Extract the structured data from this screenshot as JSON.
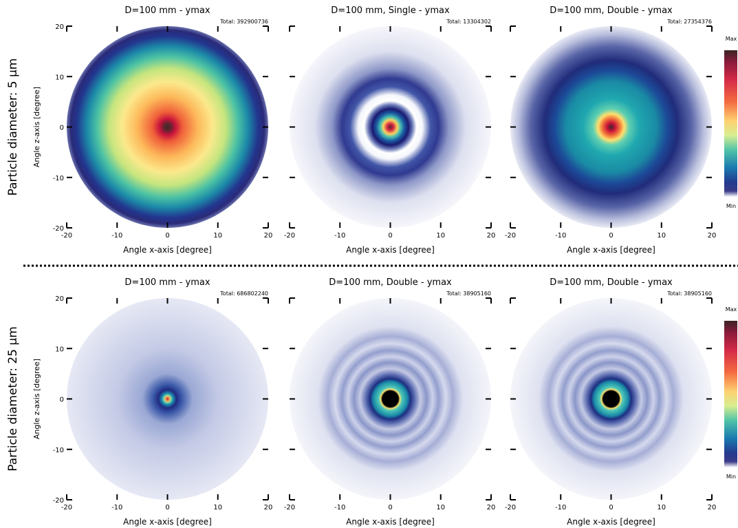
{
  "row_labels": [
    "Particle diameter: 5 µm",
    "Particle diameter: 25 µm"
  ],
  "chart_data": [
    {
      "type": "heatmap",
      "title": "D=100 mm - ymax",
      "annotation": "Total: 392900736",
      "xlabel": "Angle x-axis [degree]",
      "ylabel": "Angle z-axis [degree]",
      "xlim": [
        -20,
        20
      ],
      "ylim": [
        -20,
        20
      ],
      "xticks": [
        -20,
        -10,
        0,
        10,
        20
      ],
      "yticks": [
        -20,
        -10,
        0,
        10,
        20
      ],
      "ytick_labels": true
    },
    {
      "type": "heatmap",
      "title": "D=100 mm, Single - ymax",
      "annotation": "Total: 13304302",
      "xlabel": "Angle x-axis [degree]",
      "xlim": [
        -20,
        20
      ],
      "ylim": [
        -20,
        20
      ],
      "xticks": [
        -20,
        -10,
        0,
        10,
        20
      ],
      "yticks": [
        -20,
        -10,
        0,
        10,
        20
      ],
      "ytick_labels": false
    },
    {
      "type": "heatmap",
      "title": "D=100 mm, Double - ymax",
      "annotation": "Total: 27354376",
      "xlabel": "Angle x-axis [degree]",
      "xlim": [
        -20,
        20
      ],
      "ylim": [
        -20,
        20
      ],
      "xticks": [
        -20,
        -10,
        0,
        10,
        20
      ],
      "yticks": [
        -20,
        -10,
        0,
        10,
        20
      ],
      "ytick_labels": false
    },
    {
      "type": "heatmap",
      "title": "D=100 mm - ymax",
      "annotation": "Total: 686802240",
      "xlabel": "Angle x-axis [degree]",
      "ylabel": "Angle z-axis [degree]",
      "xlim": [
        -20,
        20
      ],
      "ylim": [
        -20,
        20
      ],
      "xticks": [
        -20,
        -10,
        0,
        10,
        20
      ],
      "yticks": [
        -20,
        -10,
        0,
        10,
        20
      ],
      "ytick_labels": true
    },
    {
      "type": "heatmap",
      "title": "D=100 mm, Double - ymax",
      "annotation": "Total: 38905160",
      "xlabel": "Angle x-axis [degree]",
      "xlim": [
        -20,
        20
      ],
      "ylim": [
        -20,
        20
      ],
      "xticks": [
        -20,
        -10,
        0,
        10,
        20
      ],
      "yticks": [
        -20,
        -10,
        0,
        10,
        20
      ],
      "ytick_labels": false
    },
    {
      "type": "heatmap",
      "title": "D=100 mm, Double - ymax",
      "annotation": "Total: 38905160",
      "xlabel": "Angle x-axis [degree]",
      "xlim": [
        -20,
        20
      ],
      "ylim": [
        -20,
        20
      ],
      "xticks": [
        -20,
        -10,
        0,
        10,
        20
      ],
      "yticks": [
        -20,
        -10,
        0,
        10,
        20
      ],
      "ytick_labels": false
    }
  ],
  "colorbars": [
    {
      "max_label": "Max",
      "min_label": "Min"
    },
    {
      "max_label": "Max",
      "min_label": "Min"
    }
  ]
}
